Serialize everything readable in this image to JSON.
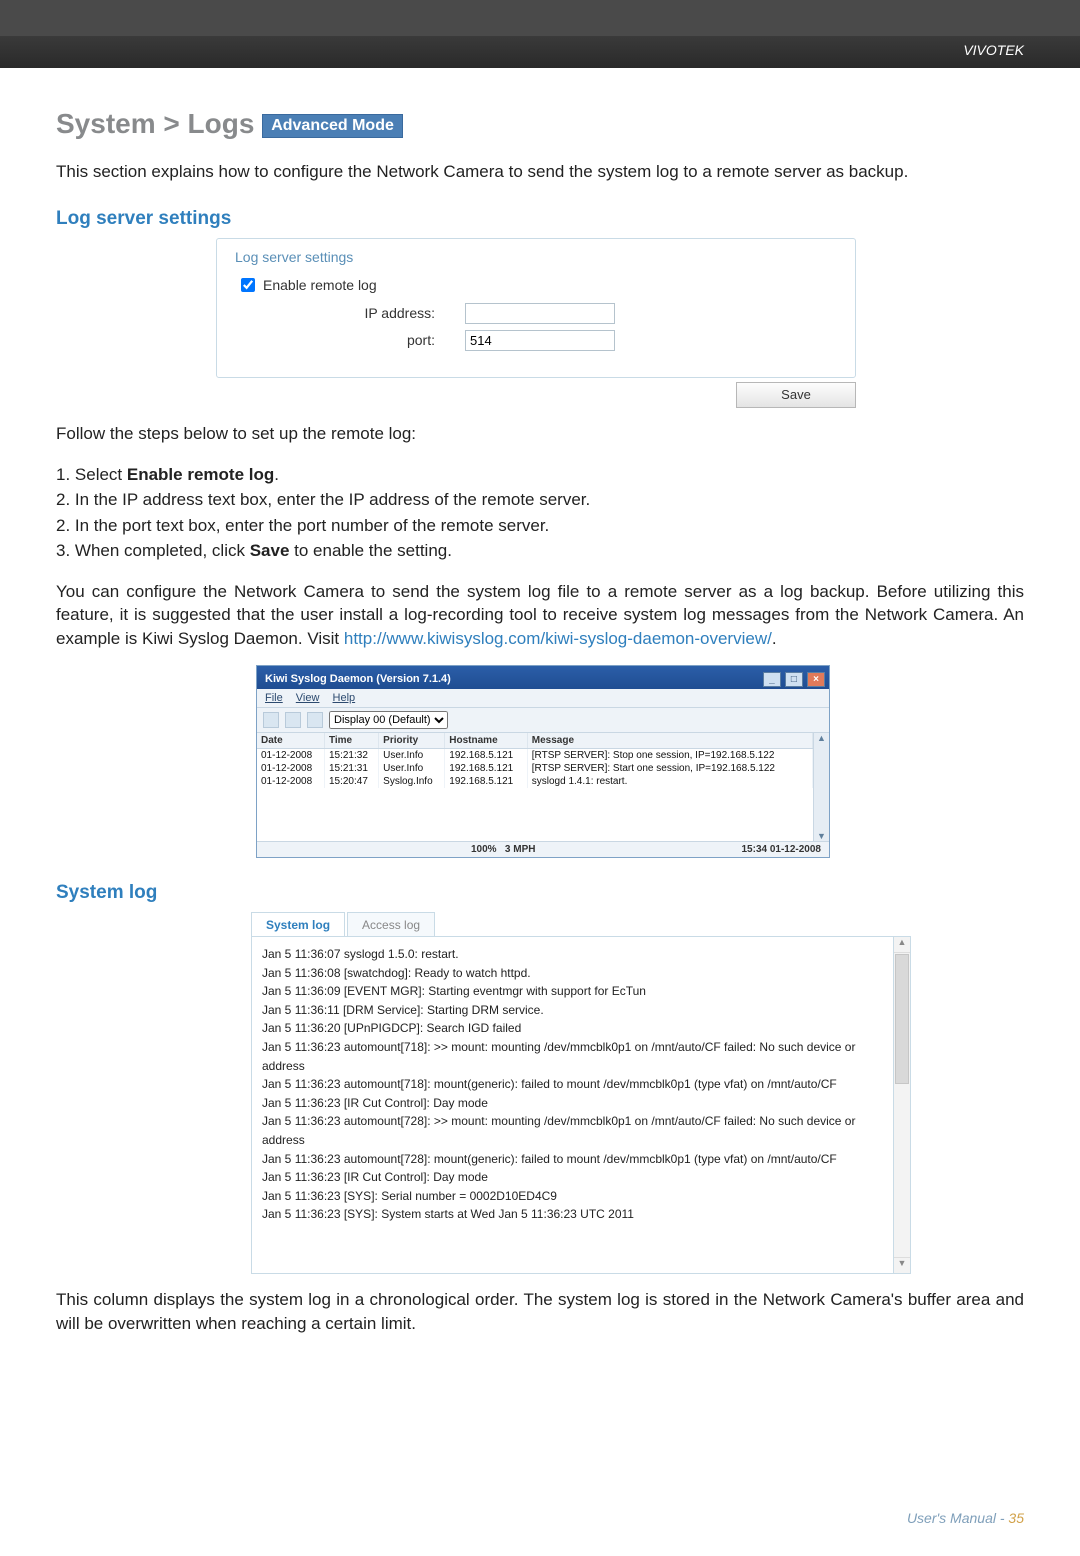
{
  "brand": "VIVOTEK",
  "title_prefix": "System > Logs",
  "badge": "Advanced Mode",
  "intro": "This section explains how to configure the Network Camera to send the system log to a remote server as backup.",
  "section1_title": "Log server settings",
  "fieldset": {
    "legend": "Log server settings",
    "enable_label": "Enable remote log",
    "enable_checked": true,
    "ip_label": "IP address:",
    "ip_value": "",
    "port_label": "port:",
    "port_value": "514",
    "save_label": "Save"
  },
  "steps_intro": "Follow the steps below to set up the remote log:",
  "steps": [
    "1. Select <b>Enable remote log</b>.",
    "2. In the IP address text box, enter the IP address of the remote server.",
    "2. In the port text box, enter the port number of the remote server.",
    "3. When completed, click <b>Save</b> to enable the setting."
  ],
  "para2_a": "You can configure the Network Camera to send the system log file to a remote server as a log backup. Before utilizing this feature, it is suggested that the user install a log-recording tool to receive system log messages from the Network Camera. An example is Kiwi Syslog Daemon. Visit ",
  "para2_link": "http://www.kiwisyslog.com/kiwi-syslog-daemon-overview/",
  "para2_b": ".",
  "kiwi": {
    "title": "Kiwi Syslog Daemon (Version 7.1.4)",
    "menu": [
      "File",
      "View",
      "Help"
    ],
    "display_label": "Display 00 (Default)",
    "columns": [
      "Date",
      "Time",
      "Priority",
      "Hostname",
      "Message"
    ],
    "rows": [
      [
        "01-12-2008",
        "15:21:32",
        "User.Info",
        "192.168.5.121",
        "[RTSP SERVER]: Stop one session, IP=192.168.5.122"
      ],
      [
        "01-12-2008",
        "15:21:31",
        "User.Info",
        "192.168.5.121",
        "[RTSP SERVER]: Start one session, IP=192.168.5.122"
      ],
      [
        "01-12-2008",
        "15:20:47",
        "Syslog.Info",
        "192.168.5.121",
        "syslogd 1.4.1: restart."
      ]
    ],
    "status_left": "100%",
    "status_mid": "3 MPH",
    "status_right": "15:34   01-12-2008"
  },
  "section2_title": "System log",
  "tabs": {
    "active": "System log",
    "other": "Access log"
  },
  "log_lines": [
    "Jan 5 11:36:07 syslogd 1.5.0: restart.",
    "Jan 5 11:36:08 [swatchdog]: Ready to watch httpd.",
    "Jan 5 11:36:09 [EVENT MGR]: Starting eventmgr with support for EcTun",
    "Jan 5 11:36:11 [DRM Service]: Starting DRM service.",
    "Jan 5 11:36:20 [UPnPIGDCP]: Search IGD failed",
    "Jan 5 11:36:23 automount[718]: >> mount: mounting /dev/mmcblk0p1 on /mnt/auto/CF failed: No such device or address",
    "Jan 5 11:36:23 automount[718]: mount(generic): failed to mount /dev/mmcblk0p1 (type vfat) on /mnt/auto/CF",
    "Jan 5 11:36:23 [IR Cut Control]: Day mode",
    "Jan 5 11:36:23 automount[728]: >> mount: mounting /dev/mmcblk0p1 on /mnt/auto/CF failed: No such device or address",
    "Jan 5 11:36:23 automount[728]: mount(generic): failed to mount /dev/mmcblk0p1 (type vfat) on /mnt/auto/CF",
    "Jan 5 11:36:23 [IR Cut Control]: Day mode",
    "Jan 5 11:36:23 [SYS]: Serial number = 0002D10ED4C9",
    "Jan 5 11:36:23 [SYS]: System starts at Wed Jan 5 11:36:23 UTC 2011"
  ],
  "closing": "This column displays the system log in a chronological order. The system log is stored in the Network Camera's buffer area and will be overwritten when reaching a certain limit.",
  "footer_label": "User's Manual - ",
  "footer_page": "35"
}
